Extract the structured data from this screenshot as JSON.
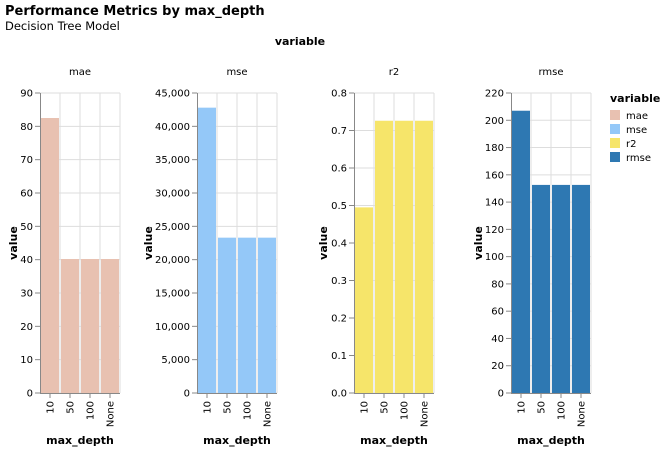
{
  "chart_data": {
    "type": "bar",
    "title": "Performance Metrics by max_depth",
    "subtitle": "Decision Tree Model",
    "column_title": "variable",
    "xlabel": "max_depth",
    "ylabel": "value",
    "categories": [
      "10",
      "50",
      "100",
      "None"
    ],
    "facets": [
      {
        "name": "mae",
        "color": "#e8c1b1",
        "values": [
          82.5,
          40.2,
          40.2,
          40.2
        ],
        "ylim": [
          0,
          90
        ],
        "ticks": [
          0,
          10,
          20,
          30,
          40,
          50,
          60,
          70,
          80,
          90
        ],
        "tick_labels": [
          "0",
          "10",
          "20",
          "30",
          "40",
          "50",
          "60",
          "70",
          "80",
          "90"
        ]
      },
      {
        "name": "mse",
        "color": "#94c8f8",
        "values": [
          42800,
          23300,
          23300,
          23300
        ],
        "ylim": [
          0,
          45000
        ],
        "ticks": [
          0,
          5000,
          10000,
          15000,
          20000,
          25000,
          30000,
          35000,
          40000,
          45000
        ],
        "tick_labels": [
          "0",
          "5,000",
          "10,000",
          "15,000",
          "20,000",
          "25,000",
          "30,000",
          "35,000",
          "40,000",
          "45,000"
        ]
      },
      {
        "name": "r2",
        "color": "#f6e56a",
        "values": [
          0.495,
          0.726,
          0.726,
          0.726
        ],
        "ylim": [
          0,
          0.8
        ],
        "ticks": [
          0,
          0.1,
          0.2,
          0.3,
          0.4,
          0.5,
          0.6,
          0.7,
          0.8
        ],
        "tick_labels": [
          "0.0",
          "0.1",
          "0.2",
          "0.3",
          "0.4",
          "0.5",
          "0.6",
          "0.7",
          "0.8"
        ]
      },
      {
        "name": "rmse",
        "color": "#2e78b2",
        "values": [
          207,
          152.6,
          152.6,
          152.6
        ],
        "ylim": [
          0,
          220
        ],
        "ticks": [
          0,
          20,
          40,
          60,
          80,
          100,
          120,
          140,
          160,
          180,
          200,
          220
        ],
        "tick_labels": [
          "0",
          "20",
          "40",
          "60",
          "80",
          "100",
          "120",
          "140",
          "160",
          "180",
          "200",
          "220"
        ]
      }
    ],
    "legend": {
      "title": "variable",
      "position": "right",
      "items": [
        {
          "label": "mae",
          "color": "#e8c1b1"
        },
        {
          "label": "mse",
          "color": "#94c8f8"
        },
        {
          "label": "r2",
          "color": "#f6e56a"
        },
        {
          "label": "rmse",
          "color": "#2e78b2"
        }
      ]
    },
    "grid": true
  }
}
